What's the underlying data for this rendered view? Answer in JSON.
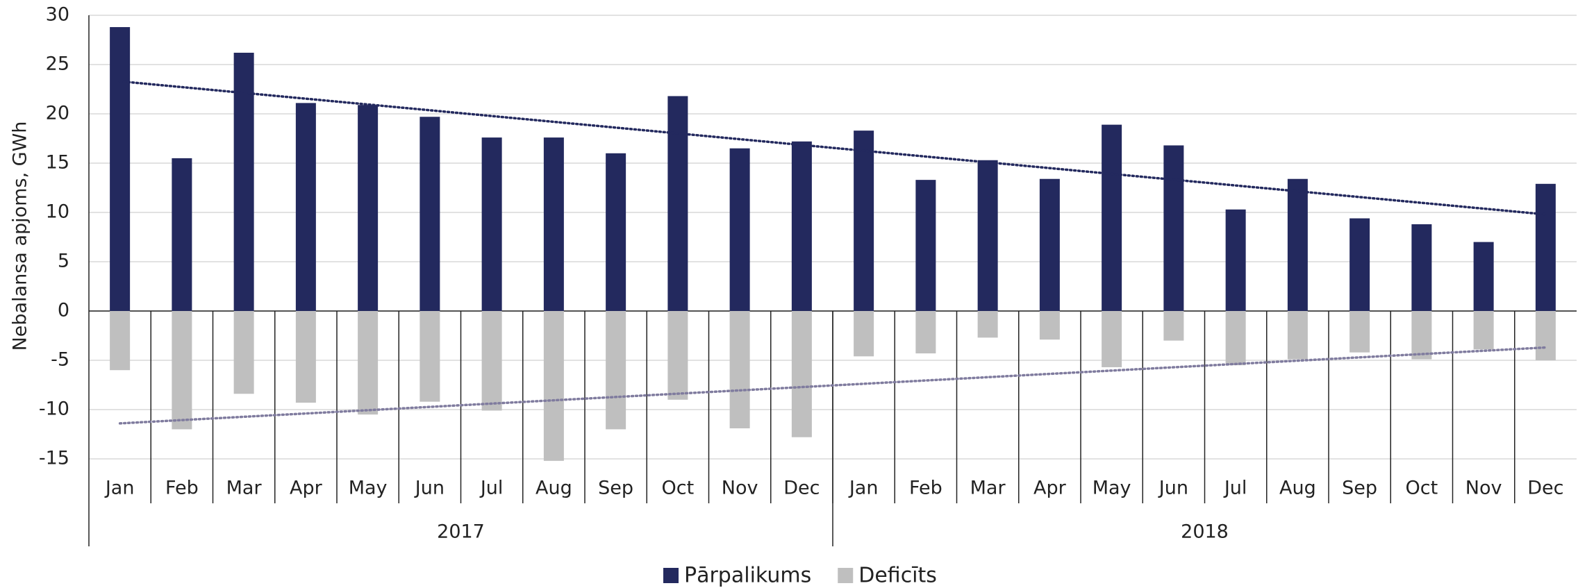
{
  "chart_data": {
    "type": "bar",
    "y_label": "Nebalansa apjoms, GWh",
    "categories": [
      "Jan",
      "Feb",
      "Mar",
      "Apr",
      "May",
      "Jun",
      "Jul",
      "Aug",
      "Sep",
      "Oct",
      "Nov",
      "Dec",
      "Jan",
      "Feb",
      "Mar",
      "Apr",
      "May",
      "Jun",
      "Jul",
      "Aug",
      "Sep",
      "Oct",
      "Nov",
      "Dec"
    ],
    "groups": [
      "2017",
      "2018"
    ],
    "series": [
      {
        "name": "Pārpalikums",
        "color": "#23295e",
        "values": [
          28.8,
          15.5,
          26.2,
          21.1,
          20.9,
          19.7,
          17.6,
          17.6,
          16.0,
          21.8,
          16.5,
          17.2,
          18.3,
          13.3,
          15.3,
          13.4,
          18.9,
          16.8,
          10.3,
          13.4,
          9.4,
          8.8,
          7.0,
          12.9
        ],
        "trend": [
          23.3,
          9.8
        ],
        "trend_color": "#23295e"
      },
      {
        "name": "Deficīts",
        "color": "#bfbfbf",
        "values": [
          -6.0,
          -12.0,
          -8.4,
          -9.3,
          -10.5,
          -9.2,
          -10.1,
          -15.2,
          -12.0,
          -9.0,
          -11.9,
          -12.8,
          -4.6,
          -4.3,
          -2.7,
          -2.9,
          -5.7,
          -3.0,
          -5.5,
          -4.9,
          -4.2,
          -4.9,
          -3.9,
          -5.0
        ],
        "trend": [
          -11.4,
          -3.7
        ],
        "trend_color": "#7f7b9e"
      }
    ],
    "ylim": [
      -15,
      30
    ],
    "yticks": [
      -15,
      -10,
      -5,
      0,
      5,
      10,
      15,
      20,
      25,
      30
    ],
    "grid": true,
    "legend": "bottom"
  }
}
